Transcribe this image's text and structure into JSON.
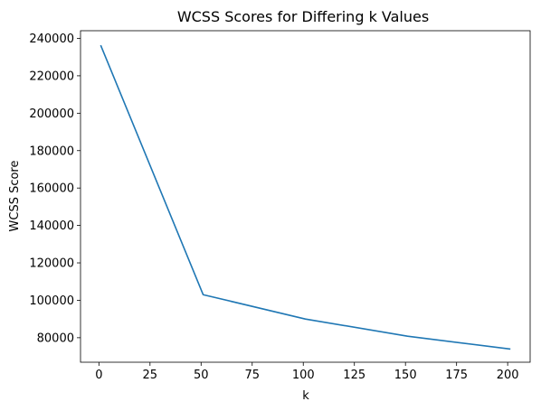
{
  "chart_data": {
    "type": "line",
    "title": "WCSS Scores for Differing k Values",
    "xlabel": "k",
    "ylabel": "WCSS Score",
    "x": [
      1,
      51,
      101,
      151,
      201
    ],
    "series": [
      {
        "values": [
          236000,
          103000,
          90000,
          80800,
          74000
        ],
        "color": "#1f77b4"
      }
    ],
    "xlim": [
      -9,
      211
    ],
    "ylim": [
      66900,
      244100
    ],
    "xticks": [
      0,
      25,
      50,
      75,
      100,
      125,
      150,
      175,
      200
    ],
    "xtick_labels": [
      "0",
      "25",
      "50",
      "75",
      "100",
      "125",
      "150",
      "175",
      "200"
    ],
    "yticks": [
      80000,
      100000,
      120000,
      140000,
      160000,
      180000,
      200000,
      220000,
      240000
    ],
    "ytick_labels": [
      "80000",
      "100000",
      "120000",
      "140000",
      "160000",
      "180000",
      "200000",
      "220000",
      "240000"
    ],
    "grid": false
  }
}
